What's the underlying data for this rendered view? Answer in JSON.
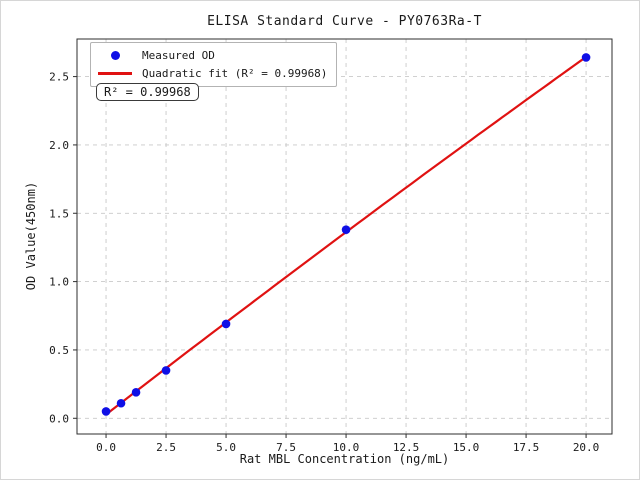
{
  "chart_data": {
    "type": "scatter",
    "title": "ELISA Standard Curve - PY0763Ra-T",
    "xlabel": "Rat MBL Concentration (ng/mL)",
    "ylabel": "OD Value(450nm)",
    "xlim": [
      -1.21,
      21.08
    ],
    "ylim": [
      -0.115,
      2.775
    ],
    "grid": true,
    "grid_style": "dashed",
    "legend_position": "upper left",
    "x_ticks": [
      0,
      2.5,
      5,
      7.5,
      10,
      12.5,
      15,
      17.5,
      20
    ],
    "x_tick_labels": [
      "0.0",
      "2.5",
      "5.0",
      "7.5",
      "10.0",
      "12.5",
      "15.0",
      "17.5",
      "20.0"
    ],
    "y_ticks": [
      0,
      0.5,
      1.0,
      1.5,
      2.0,
      2.5
    ],
    "y_tick_labels": [
      "0.0",
      "0.5",
      "1.0",
      "1.5",
      "2.0",
      "2.5"
    ],
    "series": [
      {
        "name": "Measured OD",
        "kind": "scatter",
        "color": "#0f0fe6",
        "x": [
          0,
          0.625,
          1.25,
          2.5,
          5,
          10,
          20
        ],
        "y": [
          0.05,
          0.11,
          0.19,
          0.35,
          0.69,
          1.38,
          2.64
        ]
      },
      {
        "name": "Quadratic fit (R² = 0.99968)",
        "kind": "line",
        "color": "#e01212",
        "fit": {
          "type": "quadratic",
          "a": -0.00027,
          "b": 0.13622,
          "c": 0.02724,
          "r_squared": 0.99968,
          "x_range": [
            0,
            20
          ]
        }
      }
    ],
    "annotation": {
      "text": "R² = 0.99968"
    },
    "colors": {
      "grid": "#c9c9c9",
      "frame": "#2e2e2e",
      "text": "#1a1a1a",
      "background": "#ffffff"
    }
  }
}
